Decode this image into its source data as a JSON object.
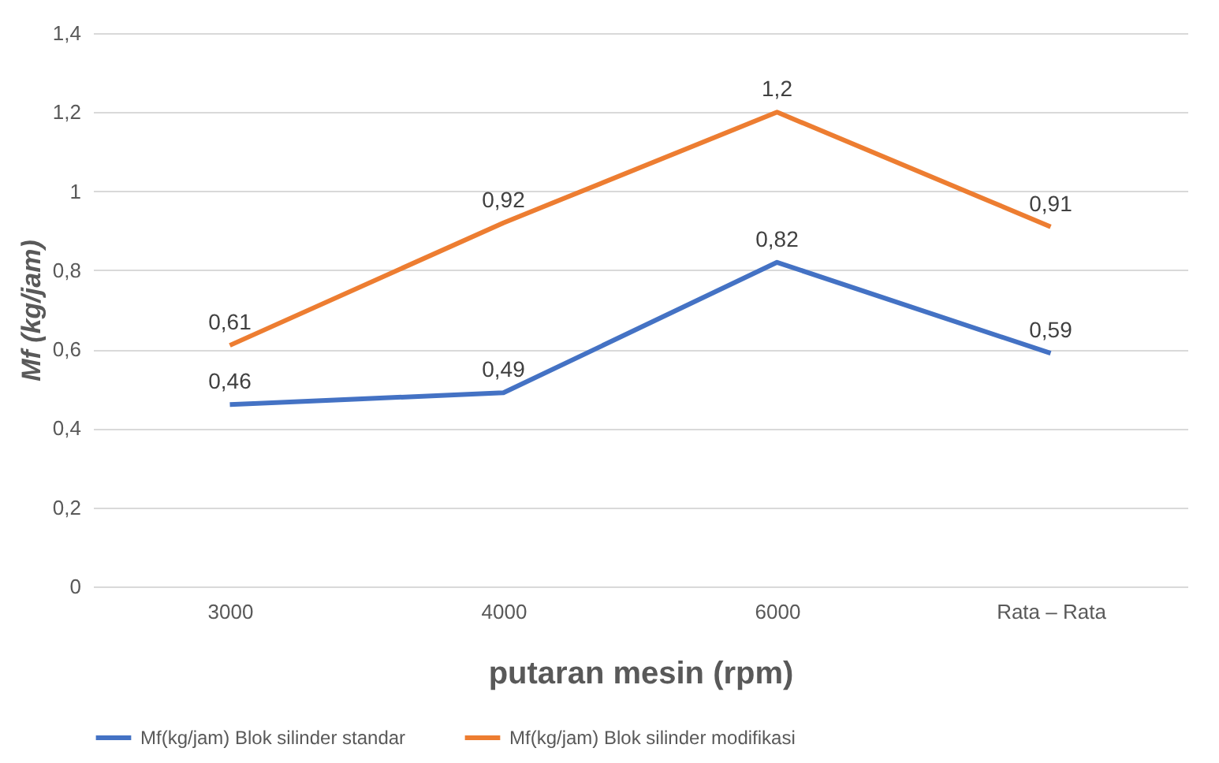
{
  "chart_data": {
    "type": "line",
    "categories": [
      "3000",
      "4000",
      "6000",
      "Rata – Rata"
    ],
    "series": [
      {
        "name": "Mf(kg/jam) Blok silinder standar",
        "color": "#4472c4",
        "values": [
          0.46,
          0.49,
          0.82,
          0.59
        ],
        "value_labels": [
          "0,46",
          "0,49",
          "0,82",
          "0,59"
        ]
      },
      {
        "name": "Mf(kg/jam) Blok silinder modifikasi",
        "color": "#ed7d31",
        "values": [
          0.61,
          0.92,
          1.2,
          0.91
        ],
        "value_labels": [
          "0,61",
          "0,92",
          "1,2",
          "0,91"
        ]
      }
    ],
    "xlabel": "putaran mesin (rpm)",
    "ylabel": "Mf (kg/jam)",
    "ylim": [
      0,
      1.4
    ],
    "yticks": [
      0,
      {
        "value": 0.2,
        "label": "0,2"
      },
      {
        "value": 0.4,
        "label": "0,4"
      },
      {
        "value": 0.6,
        "label": "0,6"
      },
      {
        "value": 0.8,
        "label": "0,8"
      },
      1,
      {
        "value": 1.2,
        "label": "1,2"
      },
      {
        "value": 1.4,
        "label": "1,4"
      }
    ],
    "grid": "y",
    "legend": "bottom",
    "marker": "none",
    "line_style": "solid"
  }
}
